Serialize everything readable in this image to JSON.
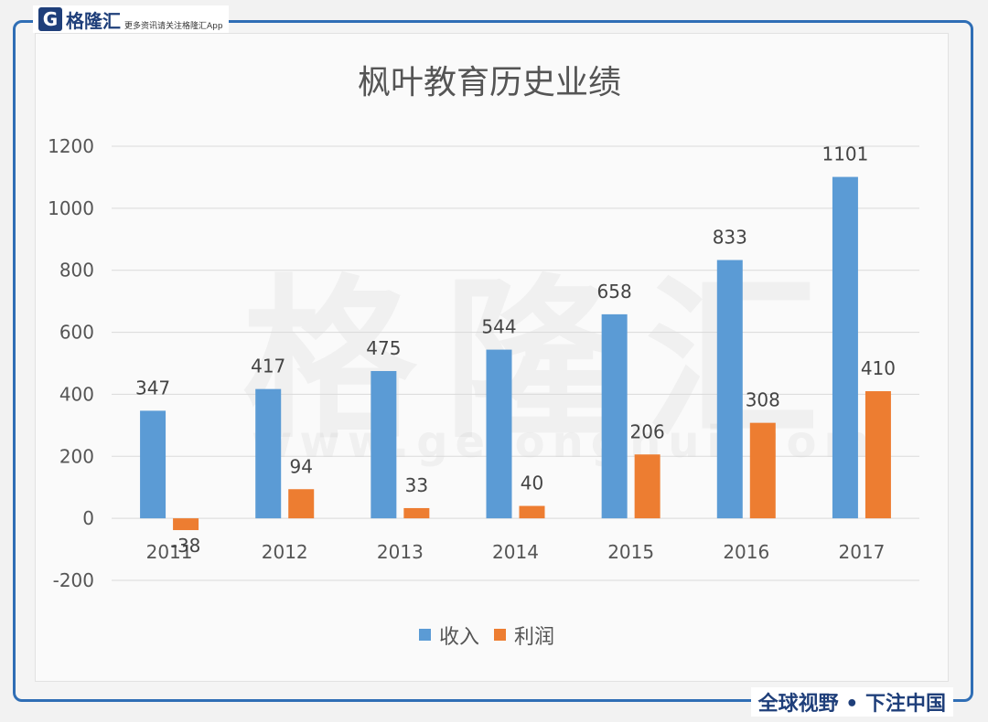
{
  "branding": {
    "logo_mark": "G",
    "logo_name": "格隆汇",
    "logo_tagline": "更多资讯请关注格隆汇App",
    "slogan": "全球视野 • 下注中国",
    "watermark": "格隆汇",
    "watermark_url": "www.gelonghui.com"
  },
  "colors": {
    "revenue": "#5b9bd5",
    "profit": "#ed7d31",
    "frame": "#2f6eb5"
  },
  "chart_data": {
    "type": "bar",
    "title": "枫叶教育历史业绩",
    "categories": [
      "2011",
      "2012",
      "2013",
      "2014",
      "2015",
      "2016",
      "2017"
    ],
    "series": [
      {
        "name": "收入",
        "values": [
          347,
          417,
          475,
          544,
          658,
          833,
          1101
        ]
      },
      {
        "name": "利润",
        "values": [
          -38,
          94,
          33,
          40,
          206,
          308,
          410
        ]
      }
    ],
    "ylim": [
      -200,
      1200
    ],
    "yticks": [
      "-200",
      "0",
      "200",
      "400",
      "600",
      "800",
      "1000",
      "1200"
    ],
    "grid": true,
    "legend": "bottom",
    "xlabel": "",
    "ylabel": ""
  }
}
